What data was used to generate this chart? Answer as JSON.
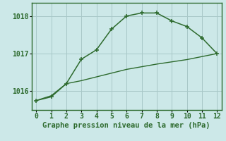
{
  "line1_x": [
    0,
    1,
    2,
    3,
    4,
    5,
    6,
    7,
    8,
    9,
    10,
    11,
    12
  ],
  "line1_y": [
    1015.75,
    1015.85,
    1016.2,
    1016.85,
    1017.1,
    1017.65,
    1018.0,
    1018.08,
    1018.08,
    1017.87,
    1017.72,
    1017.42,
    1017.0
  ],
  "line2_x": [
    0,
    1,
    2,
    3,
    4,
    5,
    6,
    7,
    8,
    9,
    10,
    11,
    12
  ],
  "line2_y": [
    1015.75,
    1015.88,
    1016.2,
    1016.28,
    1016.38,
    1016.48,
    1016.58,
    1016.65,
    1016.72,
    1016.78,
    1016.84,
    1016.92,
    1017.0
  ],
  "ylim": [
    1015.5,
    1018.35
  ],
  "xlim": [
    -0.3,
    12.3
  ],
  "yticks": [
    1016,
    1017,
    1018
  ],
  "xticks": [
    0,
    1,
    2,
    3,
    4,
    5,
    6,
    7,
    8,
    9,
    10,
    11,
    12
  ],
  "line_color": "#2d6a2d",
  "bg_color": "#cce8e8",
  "grid_color": "#a8c8c8",
  "xlabel": "Graphe pression niveau de la mer (hPa)",
  "xlabel_fontsize": 7.5,
  "tick_fontsize": 7.0,
  "tick_color": "#2d6a2d",
  "label_color": "#2d6a2d"
}
